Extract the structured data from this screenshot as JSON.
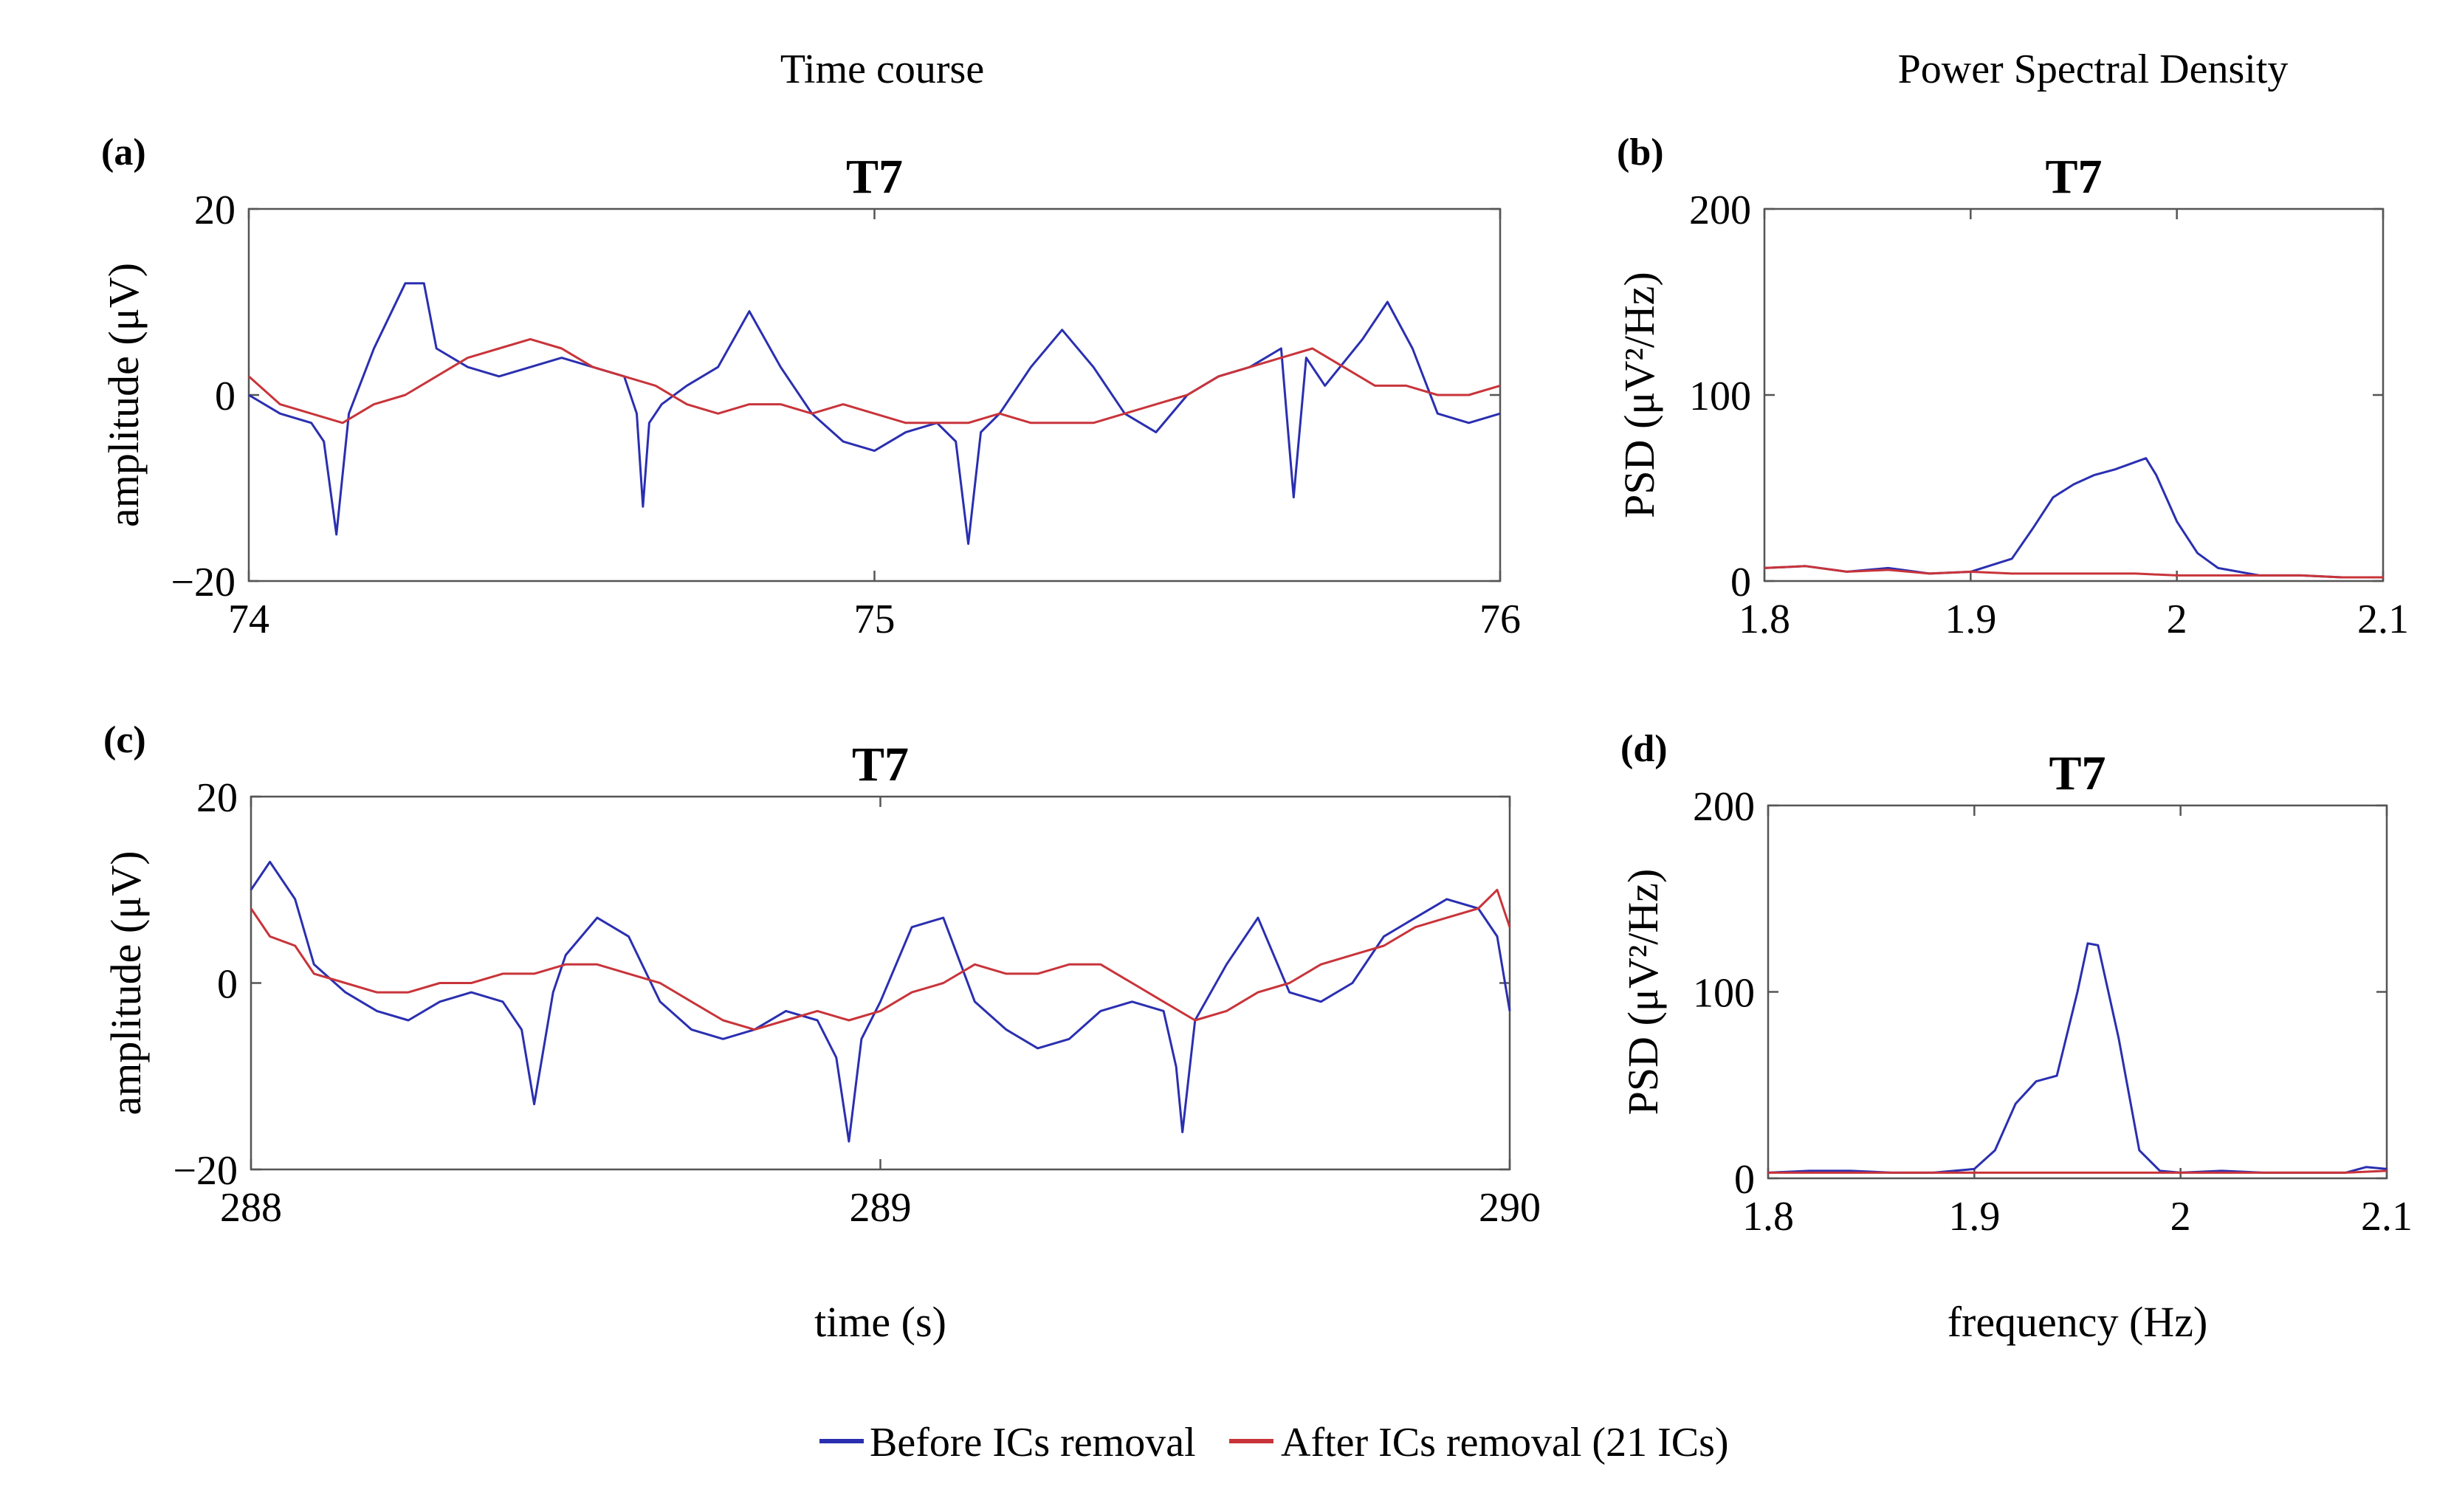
{
  "figure": {
    "col_left_title": "Time course",
    "col_right_title": "Power Spectral Density",
    "colors": {
      "before": "#2a2fb0",
      "after": "#c8343a"
    }
  },
  "legend": {
    "before_label": "Before ICs removal",
    "after_label": "After ICs removal (21 ICs)"
  },
  "chart_data": [
    {
      "id": "a",
      "letter": "(a)",
      "type": "line",
      "title": "T7",
      "xlabel": "",
      "ylabel": "amplitude (μV)",
      "xlim": [
        74,
        76
      ],
      "ylim": [
        -20,
        20
      ],
      "xticks": [
        74,
        75,
        76
      ],
      "xtick_labels": [
        "74",
        "75",
        "76"
      ],
      "yticks": [
        -20,
        0,
        20
      ],
      "ytick_labels": [
        "−20",
        "0",
        "20"
      ],
      "series": [
        {
          "name": "Before ICs removal",
          "x": [
            74.0,
            74.05,
            74.1,
            74.12,
            74.14,
            74.16,
            74.2,
            74.25,
            74.28,
            74.3,
            74.35,
            74.4,
            74.45,
            74.5,
            74.55,
            74.6,
            74.62,
            74.63,
            74.64,
            74.66,
            74.7,
            74.75,
            74.8,
            74.85,
            74.9,
            74.95,
            75.0,
            75.05,
            75.1,
            75.13,
            75.15,
            75.17,
            75.2,
            75.25,
            75.3,
            75.35,
            75.4,
            75.45,
            75.5,
            75.55,
            75.6,
            75.65,
            75.66,
            75.67,
            75.69,
            75.72,
            75.78,
            75.82,
            75.86,
            75.9,
            75.95,
            76.0
          ],
          "y": [
            0,
            -2,
            -3,
            -5,
            -15,
            -2,
            5,
            12,
            12,
            5,
            3,
            2,
            3,
            4,
            3,
            2,
            -2,
            -12,
            -3,
            -1,
            1,
            3,
            9,
            3,
            -2,
            -5,
            -6,
            -4,
            -3,
            -5,
            -16,
            -4,
            -2,
            3,
            7,
            3,
            -2,
            -4,
            0,
            2,
            3,
            5,
            -3,
            -11,
            4,
            1,
            6,
            10,
            5,
            -2,
            -3,
            -2
          ]
        },
        {
          "name": "After ICs removal (21 ICs)",
          "x": [
            74.0,
            74.05,
            74.1,
            74.15,
            74.2,
            74.25,
            74.3,
            74.35,
            74.4,
            74.45,
            74.5,
            74.55,
            74.6,
            74.65,
            74.7,
            74.75,
            74.8,
            74.85,
            74.9,
            74.95,
            75.0,
            75.05,
            75.1,
            75.15,
            75.2,
            75.25,
            75.3,
            75.35,
            75.4,
            75.45,
            75.5,
            75.55,
            75.6,
            75.65,
            75.7,
            75.75,
            75.8,
            75.85,
            75.9,
            75.95,
            76.0
          ],
          "y": [
            2,
            -1,
            -2,
            -3,
            -1,
            0,
            2,
            4,
            5,
            6,
            5,
            3,
            2,
            1,
            -1,
            -2,
            -1,
            -1,
            -2,
            -1,
            -2,
            -3,
            -3,
            -3,
            -2,
            -3,
            -3,
            -3,
            -2,
            -1,
            0,
            2,
            3,
            4,
            5,
            3,
            1,
            1,
            0,
            0,
            1
          ]
        }
      ]
    },
    {
      "id": "b",
      "letter": "(b)",
      "type": "line",
      "title": "T7",
      "xlabel": "",
      "ylabel": "PSD (μV²/Hz)",
      "xlim": [
        1.8,
        2.1
      ],
      "ylim": [
        0,
        200
      ],
      "xticks": [
        1.8,
        1.9,
        2.0,
        2.1
      ],
      "xtick_labels": [
        "1.8",
        "1.9",
        "2",
        "2.1"
      ],
      "yticks": [
        0,
        100,
        200
      ],
      "ytick_labels": [
        "0",
        "100",
        "200"
      ],
      "series": [
        {
          "name": "Before ICs removal",
          "x": [
            1.8,
            1.82,
            1.84,
            1.86,
            1.88,
            1.9,
            1.92,
            1.93,
            1.94,
            1.95,
            1.96,
            1.97,
            1.98,
            1.985,
            1.99,
            2.0,
            2.01,
            2.02,
            2.04,
            2.06,
            2.08,
            2.1
          ],
          "y": [
            7,
            8,
            5,
            7,
            4,
            5,
            12,
            28,
            45,
            52,
            57,
            60,
            64,
            66,
            57,
            32,
            15,
            7,
            3,
            3,
            2,
            2
          ]
        },
        {
          "name": "After ICs removal (21 ICs)",
          "x": [
            1.8,
            1.82,
            1.84,
            1.86,
            1.88,
            1.9,
            1.92,
            1.94,
            1.96,
            1.98,
            2.0,
            2.02,
            2.04,
            2.06,
            2.08,
            2.1
          ],
          "y": [
            7,
            8,
            5,
            6,
            4,
            5,
            4,
            4,
            4,
            4,
            3,
            3,
            3,
            3,
            2,
            2
          ]
        }
      ]
    },
    {
      "id": "c",
      "letter": "(c)",
      "type": "line",
      "title": "T7",
      "xlabel": "time (s)",
      "ylabel": "amplitude (μV)",
      "xlim": [
        288,
        290
      ],
      "ylim": [
        -20,
        20
      ],
      "xticks": [
        288,
        289,
        290
      ],
      "xtick_labels": [
        "288",
        "289",
        "290"
      ],
      "yticks": [
        -20,
        0,
        20
      ],
      "ytick_labels": [
        "−20",
        "0",
        "20"
      ],
      "series": [
        {
          "name": "Before ICs removal",
          "x": [
            288.0,
            288.03,
            288.07,
            288.1,
            288.15,
            288.2,
            288.25,
            288.3,
            288.35,
            288.4,
            288.43,
            288.45,
            288.48,
            288.5,
            288.55,
            288.6,
            288.65,
            288.7,
            288.75,
            288.8,
            288.85,
            288.9,
            288.93,
            288.95,
            288.97,
            289.0,
            289.05,
            289.1,
            289.15,
            289.2,
            289.25,
            289.3,
            289.35,
            289.4,
            289.45,
            289.47,
            289.48,
            289.5,
            289.55,
            289.6,
            289.65,
            289.7,
            289.75,
            289.8,
            289.85,
            289.9,
            289.95,
            289.98,
            290.0
          ],
          "y": [
            10,
            13,
            9,
            2,
            -1,
            -3,
            -4,
            -2,
            -1,
            -2,
            -5,
            -13,
            -1,
            3,
            7,
            5,
            -2,
            -5,
            -6,
            -5,
            -3,
            -4,
            -8,
            -17,
            -6,
            -2,
            6,
            7,
            -2,
            -5,
            -7,
            -6,
            -3,
            -2,
            -3,
            -9,
            -16,
            -4,
            2,
            7,
            -1,
            -2,
            0,
            5,
            7,
            9,
            8,
            5,
            -3
          ]
        },
        {
          "name": "After ICs removal (21 ICs)",
          "x": [
            288.0,
            288.03,
            288.07,
            288.1,
            288.15,
            288.2,
            288.25,
            288.3,
            288.35,
            288.4,
            288.45,
            288.5,
            288.55,
            288.6,
            288.65,
            288.7,
            288.75,
            288.8,
            288.85,
            288.9,
            288.95,
            289.0,
            289.05,
            289.1,
            289.15,
            289.2,
            289.25,
            289.3,
            289.35,
            289.4,
            289.45,
            289.5,
            289.55,
            289.6,
            289.65,
            289.7,
            289.75,
            289.8,
            289.85,
            289.9,
            289.95,
            289.98,
            290.0
          ],
          "y": [
            8,
            5,
            4,
            1,
            0,
            -1,
            -1,
            0,
            0,
            1,
            1,
            2,
            2,
            1,
            0,
            -2,
            -4,
            -5,
            -4,
            -3,
            -4,
            -3,
            -1,
            0,
            2,
            1,
            1,
            2,
            2,
            0,
            -2,
            -4,
            -3,
            -1,
            0,
            2,
            3,
            4,
            6,
            7,
            8,
            10,
            6
          ]
        }
      ]
    },
    {
      "id": "d",
      "letter": "(d)",
      "type": "line",
      "title": "T7",
      "xlabel": "frequency (Hz)",
      "ylabel": "PSD (μV²/Hz)",
      "xlim": [
        1.8,
        2.1
      ],
      "ylim": [
        0,
        200
      ],
      "xticks": [
        1.8,
        1.9,
        2.0,
        2.1
      ],
      "xtick_labels": [
        "1.8",
        "1.9",
        "2",
        "2.1"
      ],
      "yticks": [
        0,
        100,
        200
      ],
      "ytick_labels": [
        "0",
        "100",
        "200"
      ],
      "series": [
        {
          "name": "Before ICs removal",
          "x": [
            1.8,
            1.82,
            1.84,
            1.86,
            1.88,
            1.9,
            1.91,
            1.92,
            1.93,
            1.94,
            1.95,
            1.955,
            1.96,
            1.97,
            1.98,
            1.99,
            2.0,
            2.02,
            2.04,
            2.06,
            2.08,
            2.09,
            2.1
          ],
          "y": [
            3,
            4,
            4,
            3,
            3,
            5,
            15,
            40,
            52,
            55,
            100,
            126,
            125,
            75,
            15,
            4,
            3,
            4,
            3,
            3,
            3,
            6,
            5
          ]
        },
        {
          "name": "After ICs removal (21 ICs)",
          "x": [
            1.8,
            1.82,
            1.84,
            1.86,
            1.88,
            1.9,
            1.92,
            1.94,
            1.96,
            1.98,
            2.0,
            2.02,
            2.04,
            2.06,
            2.08,
            2.1
          ],
          "y": [
            3,
            3,
            3,
            3,
            3,
            3,
            3,
            3,
            3,
            3,
            3,
            3,
            3,
            3,
            3,
            4
          ]
        }
      ]
    }
  ]
}
